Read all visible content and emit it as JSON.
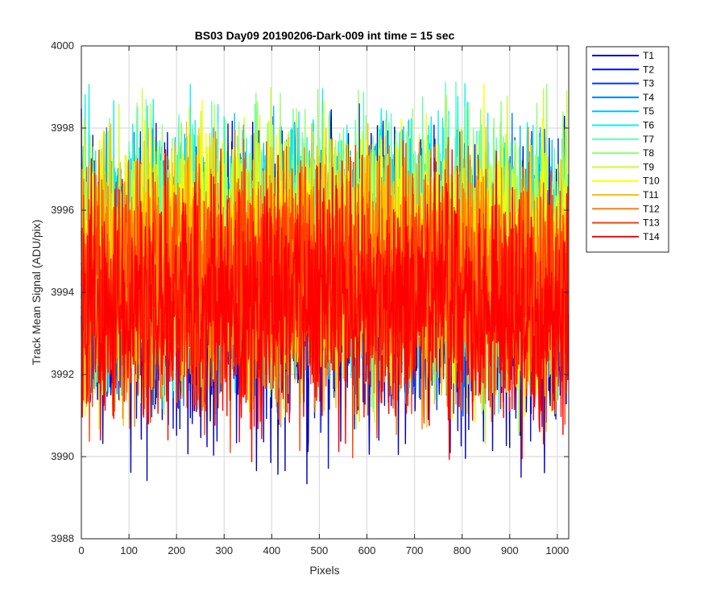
{
  "chart_data": {
    "type": "line",
    "title": "BS03 Day09 20190206-Dark-009 int time = 15 sec",
    "xlabel": "Pixels",
    "ylabel": "Track Mean Signal (ADU/pix)",
    "xlim": [
      0,
      1024
    ],
    "ylim": [
      3988,
      4000
    ],
    "xticks": [
      0,
      100,
      200,
      300,
      400,
      500,
      600,
      700,
      800,
      900,
      1000
    ],
    "yticks": [
      3988,
      3990,
      3992,
      3994,
      3996,
      3998,
      4000
    ],
    "grid": true,
    "legend_position": "outside-top-right",
    "x_range_sampled": [
      0,
      1023
    ],
    "series": [
      {
        "name": "T1",
        "color": "#0000B8",
        "mean": 3994.0,
        "min": 3989.2,
        "max": 3998.6
      },
      {
        "name": "T2",
        "color": "#0010D9",
        "mean": 3994.1,
        "min": 3989.4,
        "max": 3998.2
      },
      {
        "name": "T3",
        "color": "#0038F5",
        "mean": 3994.3,
        "min": 3990.5,
        "max": 3998.0
      },
      {
        "name": "T4",
        "color": "#0080FF",
        "mean": 3994.6,
        "min": 3991.0,
        "max": 3998.4
      },
      {
        "name": "T5",
        "color": "#00C0FF",
        "mean": 3994.9,
        "min": 3991.2,
        "max": 3998.6
      },
      {
        "name": "T6",
        "color": "#10F0F0",
        "mean": 3995.1,
        "min": 3991.0,
        "max": 3999.1
      },
      {
        "name": "T7",
        "color": "#60FFB0",
        "mean": 3995.1,
        "min": 3991.4,
        "max": 3999.3
      },
      {
        "name": "T8",
        "color": "#90FF70",
        "mean": 3995.0,
        "min": 3990.5,
        "max": 3999.2
      },
      {
        "name": "T9",
        "color": "#C8FF30",
        "mean": 3994.8,
        "min": 3990.3,
        "max": 3999.0
      },
      {
        "name": "T10",
        "color": "#FFFF00",
        "mean": 3994.6,
        "min": 3990.8,
        "max": 3999.2
      },
      {
        "name": "T11",
        "color": "#FFC000",
        "mean": 3994.4,
        "min": 3990.6,
        "max": 3998.2
      },
      {
        "name": "T12",
        "color": "#FF8000",
        "mean": 3994.2,
        "min": 3989.7,
        "max": 3998.1
      },
      {
        "name": "T13",
        "color": "#FF4000",
        "mean": 3994.0,
        "min": 3989.8,
        "max": 3997.8
      },
      {
        "name": "T14",
        "color": "#FF0000",
        "mean": 3993.6,
        "min": 3989.6,
        "max": 3997.5
      }
    ]
  }
}
